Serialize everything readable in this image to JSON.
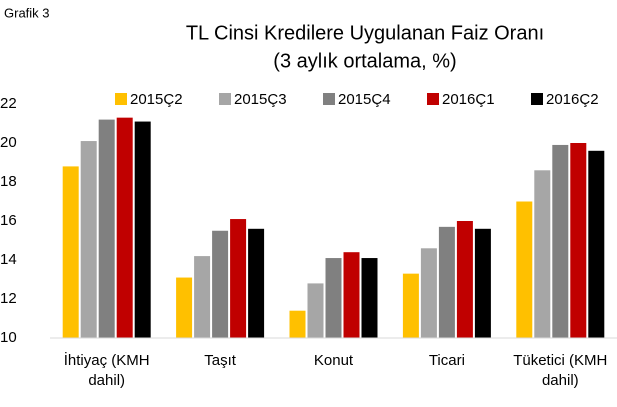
{
  "chart_data": {
    "type": "bar",
    "label": "Grafik 3",
    "title": "TL Cinsi Kredilere Uygulanan Faiz Oranı",
    "subtitle": "(3 aylık ortalama, %)",
    "categories": [
      "İhtiyaç (KMH dahil)",
      "Taşıt",
      "Konut",
      "Ticari",
      "Tüketici (KMH dahil)"
    ],
    "series": [
      {
        "name": "2015Ç2",
        "color": "#FFC000",
        "values": [
          18.8,
          13.1,
          11.4,
          13.3,
          17.0
        ]
      },
      {
        "name": "2015Ç3",
        "color": "#A6A6A6",
        "values": [
          20.1,
          14.2,
          12.8,
          14.6,
          18.6
        ]
      },
      {
        "name": "2015Ç4",
        "color": "#808080",
        "values": [
          21.2,
          15.5,
          14.1,
          15.7,
          19.9
        ]
      },
      {
        "name": "2016Ç1",
        "color": "#C00000",
        "values": [
          21.3,
          16.1,
          14.4,
          16.0,
          20.0
        ]
      },
      {
        "name": "2016Ç2",
        "color": "#000000",
        "values": [
          21.1,
          15.6,
          14.1,
          15.6,
          19.6
        ]
      }
    ],
    "ylim": [
      10,
      22
    ],
    "yticks": [
      10,
      12,
      14,
      16,
      18,
      20,
      22
    ],
    "grid": false
  }
}
